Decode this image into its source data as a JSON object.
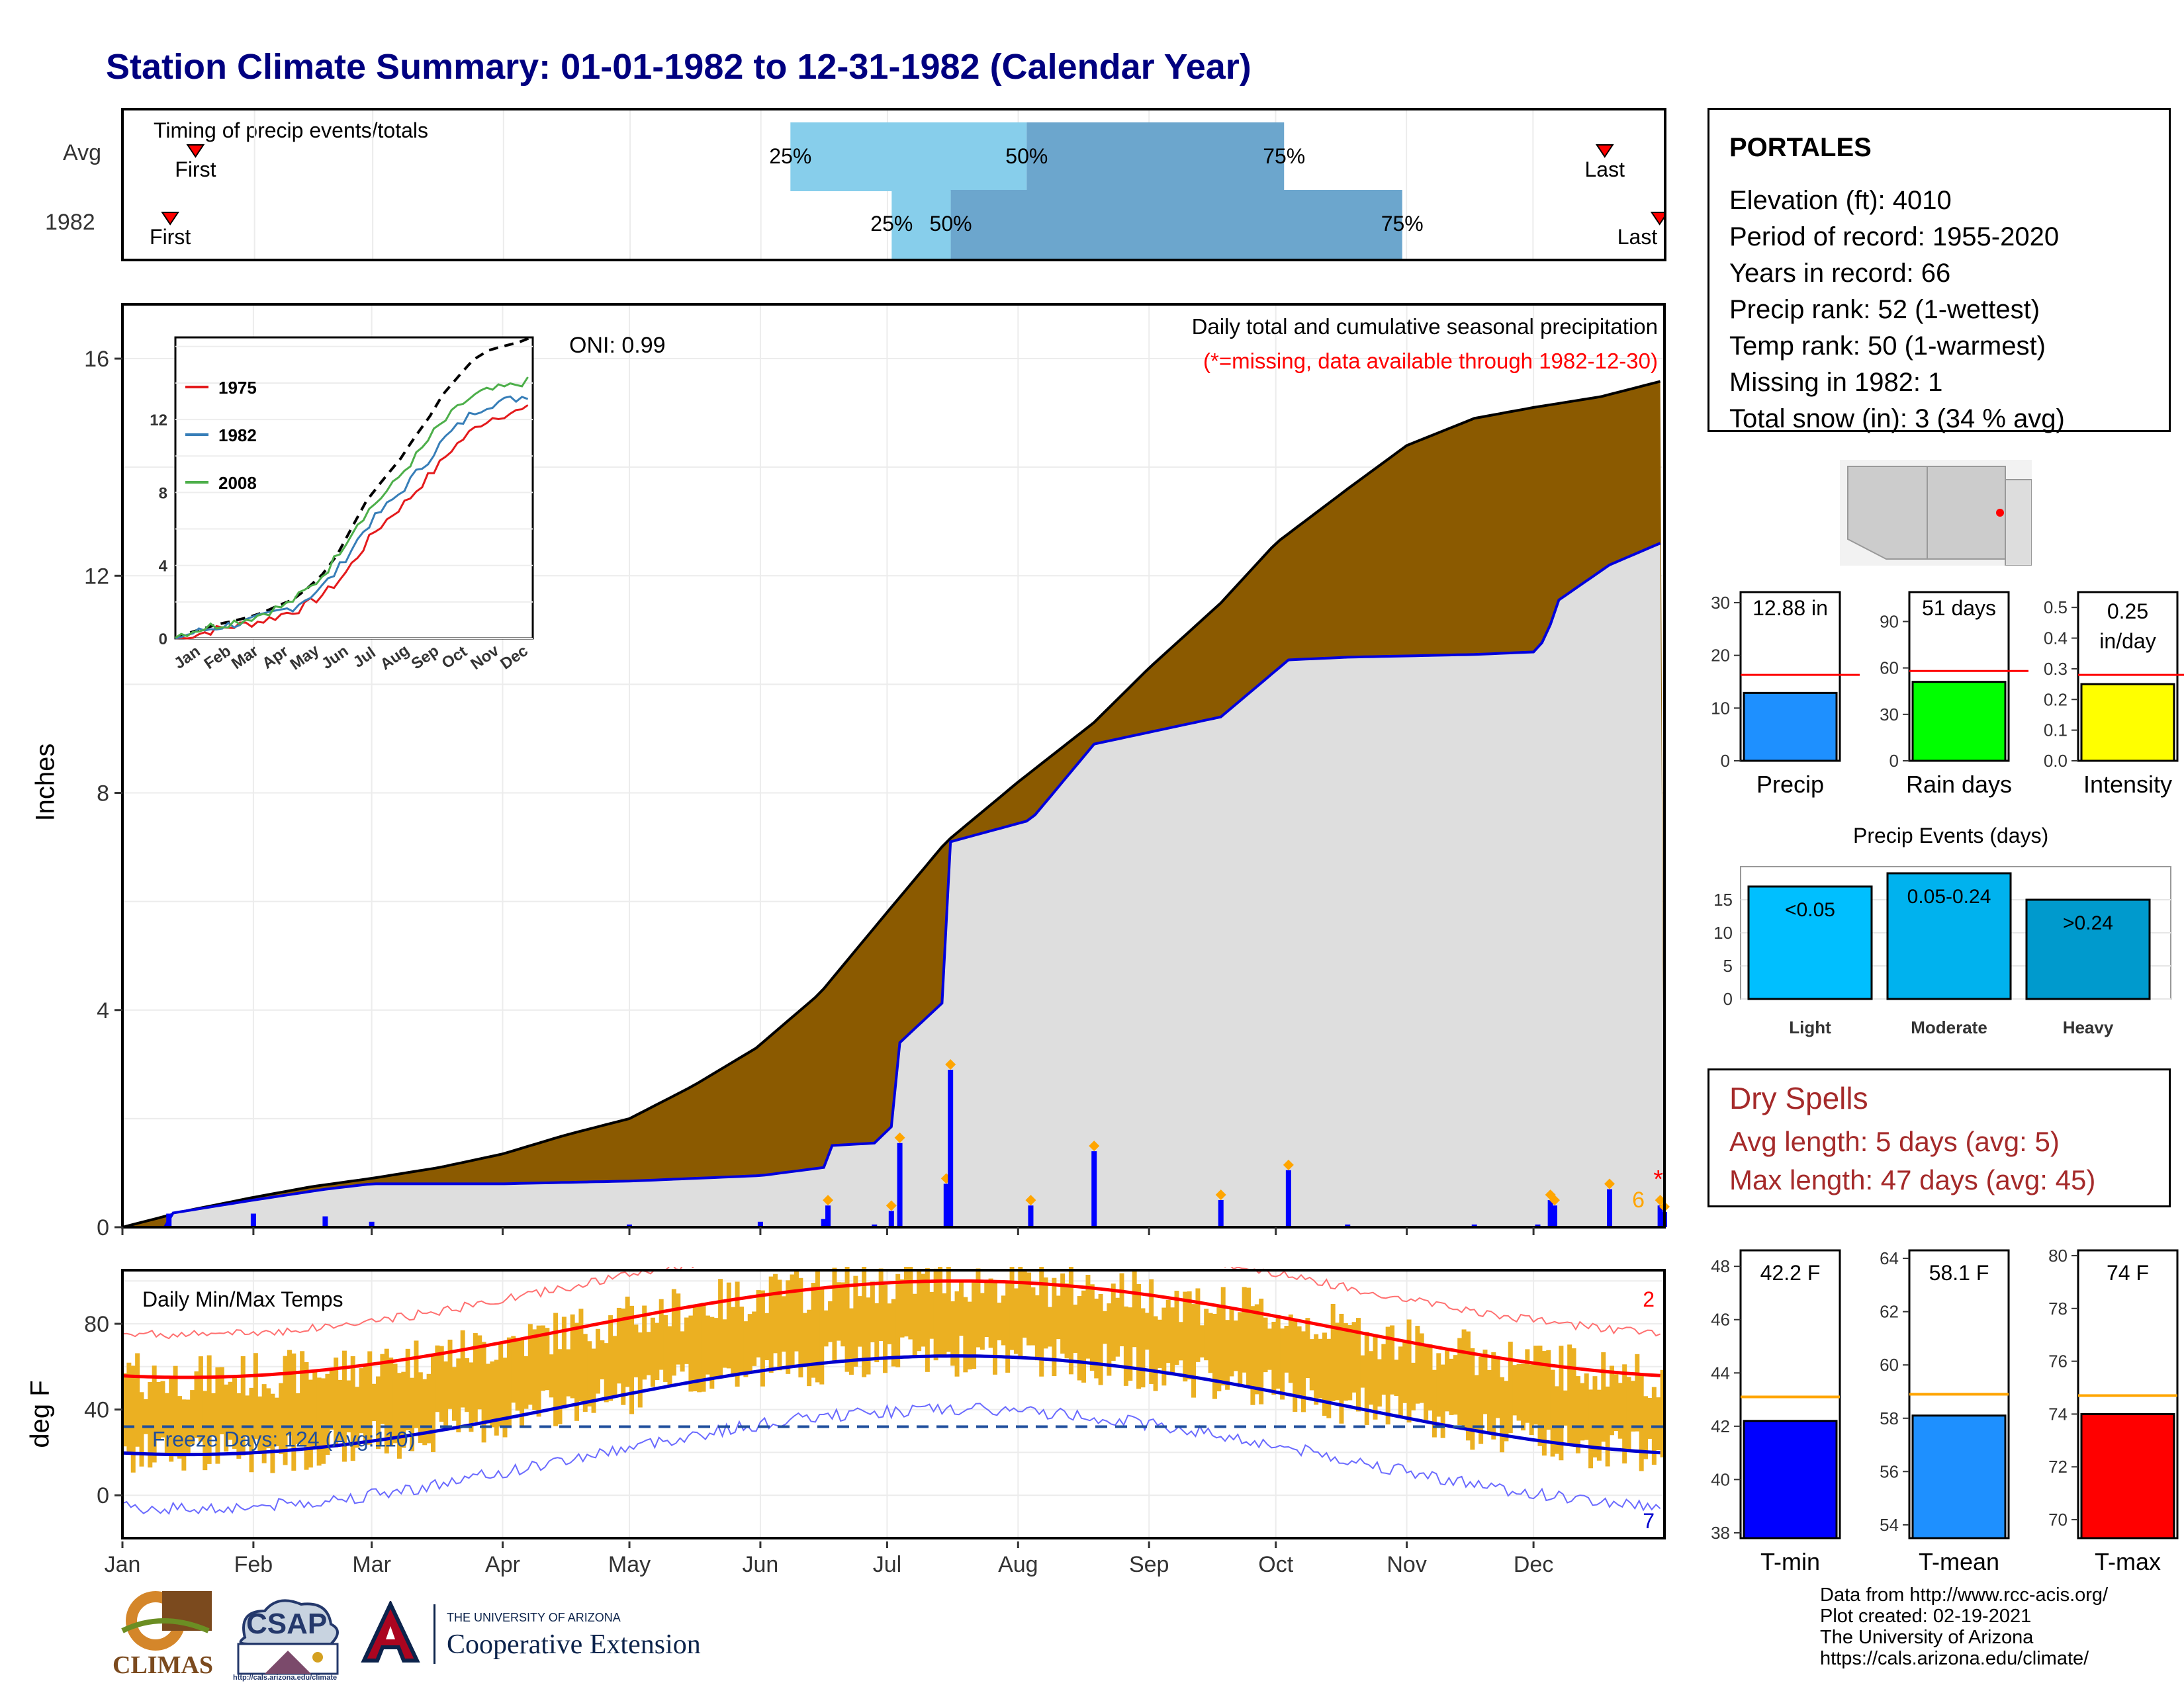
{
  "title": "Station Climate Summary: 01-01-1982 to 12-31-1982 (Calendar Year)",
  "timing": {
    "label": "Timing of precip events/totals",
    "rows": [
      {
        "label": "Avg",
        "first": "First",
        "last": "Last",
        "p25": "25%",
        "p50": "50%",
        "p75": "75%",
        "p25_day": 158,
        "p50_day": 214,
        "p75_day": 275,
        "first_day": 17,
        "last_day": 351
      },
      {
        "label": "1982",
        "first": "First",
        "last": "Last",
        "p25": "25%",
        "p50": "50%",
        "p75": "75%",
        "p25_day": 182,
        "p50_day": 196,
        "p75_day": 303,
        "first_day": 11,
        "last_day": 364
      }
    ]
  },
  "precip": {
    "ylabel": "Inches",
    "yticks": [
      "0",
      "4",
      "8",
      "12",
      "16"
    ],
    "note1": "Daily total and cumulative seasonal precipitation",
    "note2": "(*=missing, data available through 1982-12-30)",
    "oni": "ONI: 0.99",
    "count_label": "6",
    "missing_mark": "*"
  },
  "inset": {
    "legend": [
      "1975",
      "1982",
      "2008"
    ],
    "yticks": [
      "0",
      "4",
      "8",
      "12"
    ],
    "xticks": [
      "Jan",
      "Feb",
      "Mar",
      "Apr",
      "May",
      "Jun",
      "Jul",
      "Aug",
      "Sep",
      "Oct",
      "Nov",
      "Dec"
    ]
  },
  "temps": {
    "label": "Daily Min/Max Temps",
    "ylabel": "deg F",
    "yticks": [
      "0",
      "40",
      "80"
    ],
    "freeze": "Freeze Days: 124 (Avg:110)",
    "count_hi": "2",
    "count_lo": "7"
  },
  "xticks": [
    "Jan",
    "Feb",
    "Mar",
    "Apr",
    "May",
    "Jun",
    "Jul",
    "Aug",
    "Sep",
    "Oct",
    "Nov",
    "Dec"
  ],
  "station": {
    "name": "PORTALES",
    "lines": [
      "Elevation (ft): 4010",
      "Period of record: 1955-2020",
      "Years in record: 66",
      "Precip rank: 52 (1-wettest)",
      "Temp rank: 50 (1-warmest)",
      "Missing in 1982: 1",
      "Total snow (in): 3 (34 % avg)"
    ]
  },
  "mini_bars": [
    {
      "label": "Precip",
      "value_text": "12.88 in",
      "value": 12.88,
      "avg": 16.3,
      "ymin": 0,
      "ymax": 32,
      "ticks": [
        "0",
        "10",
        "20",
        "30"
      ],
      "tickvals": [
        0,
        10,
        20,
        30
      ],
      "color": "#1e90ff"
    },
    {
      "label": "Rain days",
      "value_text": "51 days",
      "value": 51,
      "avg": 58,
      "ymin": 0,
      "ymax": 109,
      "ticks": [
        "0",
        "30",
        "60",
        "90"
      ],
      "tickvals": [
        0,
        30,
        60,
        90
      ],
      "color": "#00ff00"
    },
    {
      "label": "Intensity",
      "value_text": "0.25 in/day",
      "value": 0.25,
      "avg": 0.28,
      "ymin": 0,
      "ymax": 0.55,
      "ticks": [
        "0.0",
        "0.1",
        "0.2",
        "0.3",
        "0.4",
        "0.5"
      ],
      "tickvals": [
        0,
        0.1,
        0.2,
        0.3,
        0.4,
        0.5
      ],
      "color": "#ffff00"
    }
  ],
  "events": {
    "title": "Precip Events (days)",
    "yticks": [
      "0",
      "5",
      "10",
      "15"
    ],
    "bars": [
      {
        "label": "Light",
        "tag": "<0.05",
        "value": 17,
        "color": "#00bfff"
      },
      {
        "label": "Moderate",
        "tag": "0.05-0.24",
        "value": 19,
        "color": "#00b2ee"
      },
      {
        "label": "Heavy",
        "tag": ">0.24",
        "value": 15,
        "color": "#009acd"
      }
    ]
  },
  "dry": {
    "title": "Dry Spells",
    "avg": "Avg length: 5 days (avg: 5)",
    "max": "Max length: 47 days (avg: 45)"
  },
  "temp_bars": [
    {
      "label": "T-min",
      "value_text": "42.2 F",
      "value": 42.2,
      "avg": 43.1,
      "ymin": 37.8,
      "ymax": 48.6,
      "ticks": [
        "38",
        "40",
        "42",
        "44",
        "46",
        "48"
      ],
      "tickvals": [
        38,
        40,
        42,
        44,
        46,
        48
      ],
      "color": "#0000ff"
    },
    {
      "label": "T-mean",
      "value_text": "58.1 F",
      "value": 58.1,
      "avg": 58.9,
      "ymin": 53.5,
      "ymax": 64.3,
      "ticks": [
        "54",
        "56",
        "58",
        "60",
        "62",
        "64"
      ],
      "tickvals": [
        54,
        56,
        58,
        60,
        62,
        64
      ],
      "color": "#1e90ff"
    },
    {
      "label": "T-max",
      "value_text": "74 F",
      "value": 74,
      "avg": 74.7,
      "ymin": 69.3,
      "ymax": 80.2,
      "ticks": [
        "70",
        "72",
        "74",
        "76",
        "78",
        "80"
      ],
      "tickvals": [
        70,
        72,
        74,
        76,
        78,
        80
      ],
      "color": "#ff0000"
    }
  ],
  "credits": [
    "Data from http://www.rcc-acis.org/",
    "Plot created: 02-19-2021",
    "The University of Arizona",
    "https://cals.arizona.edu/climate/"
  ],
  "logos": {
    "climas": "CLIMAS",
    "csap": "CSAP",
    "csap_url": "http://cals.arizona.edu/climate",
    "ua_small": "THE UNIVERSITY OF ARIZONA",
    "ua_big": "Cooperative Extension"
  },
  "chart_data": [
    {
      "type": "area",
      "title": "Daily total and cumulative seasonal precipitation",
      "ylabel": "Inches",
      "ylim": [
        0,
        17
      ],
      "series": [
        {
          "name": "avg_cumulative",
          "x_day": [
            0,
            15,
            31,
            45,
            59,
            75,
            90,
            105,
            120,
            135,
            150,
            165,
            181,
            195,
            212,
            230,
            243,
            260,
            273,
            290,
            304,
            320,
            334,
            350,
            365
          ],
          "values": [
            0,
            0.3,
            0.55,
            0.75,
            0.9,
            1.1,
            1.35,
            1.7,
            2.0,
            2.6,
            3.3,
            4.3,
            5.8,
            7.1,
            8.2,
            9.3,
            10.3,
            11.5,
            12.6,
            13.6,
            14.4,
            14.9,
            15.1,
            15.3,
            15.6
          ]
        },
        {
          "name": "1982_cumulative",
          "x_day": [
            0,
            10,
            11,
            31,
            48,
            59,
            90,
            120,
            151,
            166,
            167,
            178,
            182,
            184,
            195,
            196,
            215,
            230,
            260,
            276,
            290,
            320,
            335,
            338,
            339,
            352,
            364,
            365
          ],
          "values": [
            0,
            0,
            0.25,
            0.5,
            0.7,
            0.8,
            0.8,
            0.85,
            0.95,
            1.1,
            1.5,
            1.55,
            1.85,
            3.4,
            4.2,
            7.1,
            7.5,
            8.9,
            9.4,
            10.45,
            10.5,
            10.55,
            10.6,
            11.1,
            11.5,
            12.2,
            12.6,
            12.88
          ]
        }
      ]
    },
    {
      "type": "bar",
      "title": "Precip Events (days)",
      "categories": [
        "Light",
        "Moderate",
        "Heavy"
      ],
      "values": [
        17,
        19,
        15
      ]
    }
  ]
}
